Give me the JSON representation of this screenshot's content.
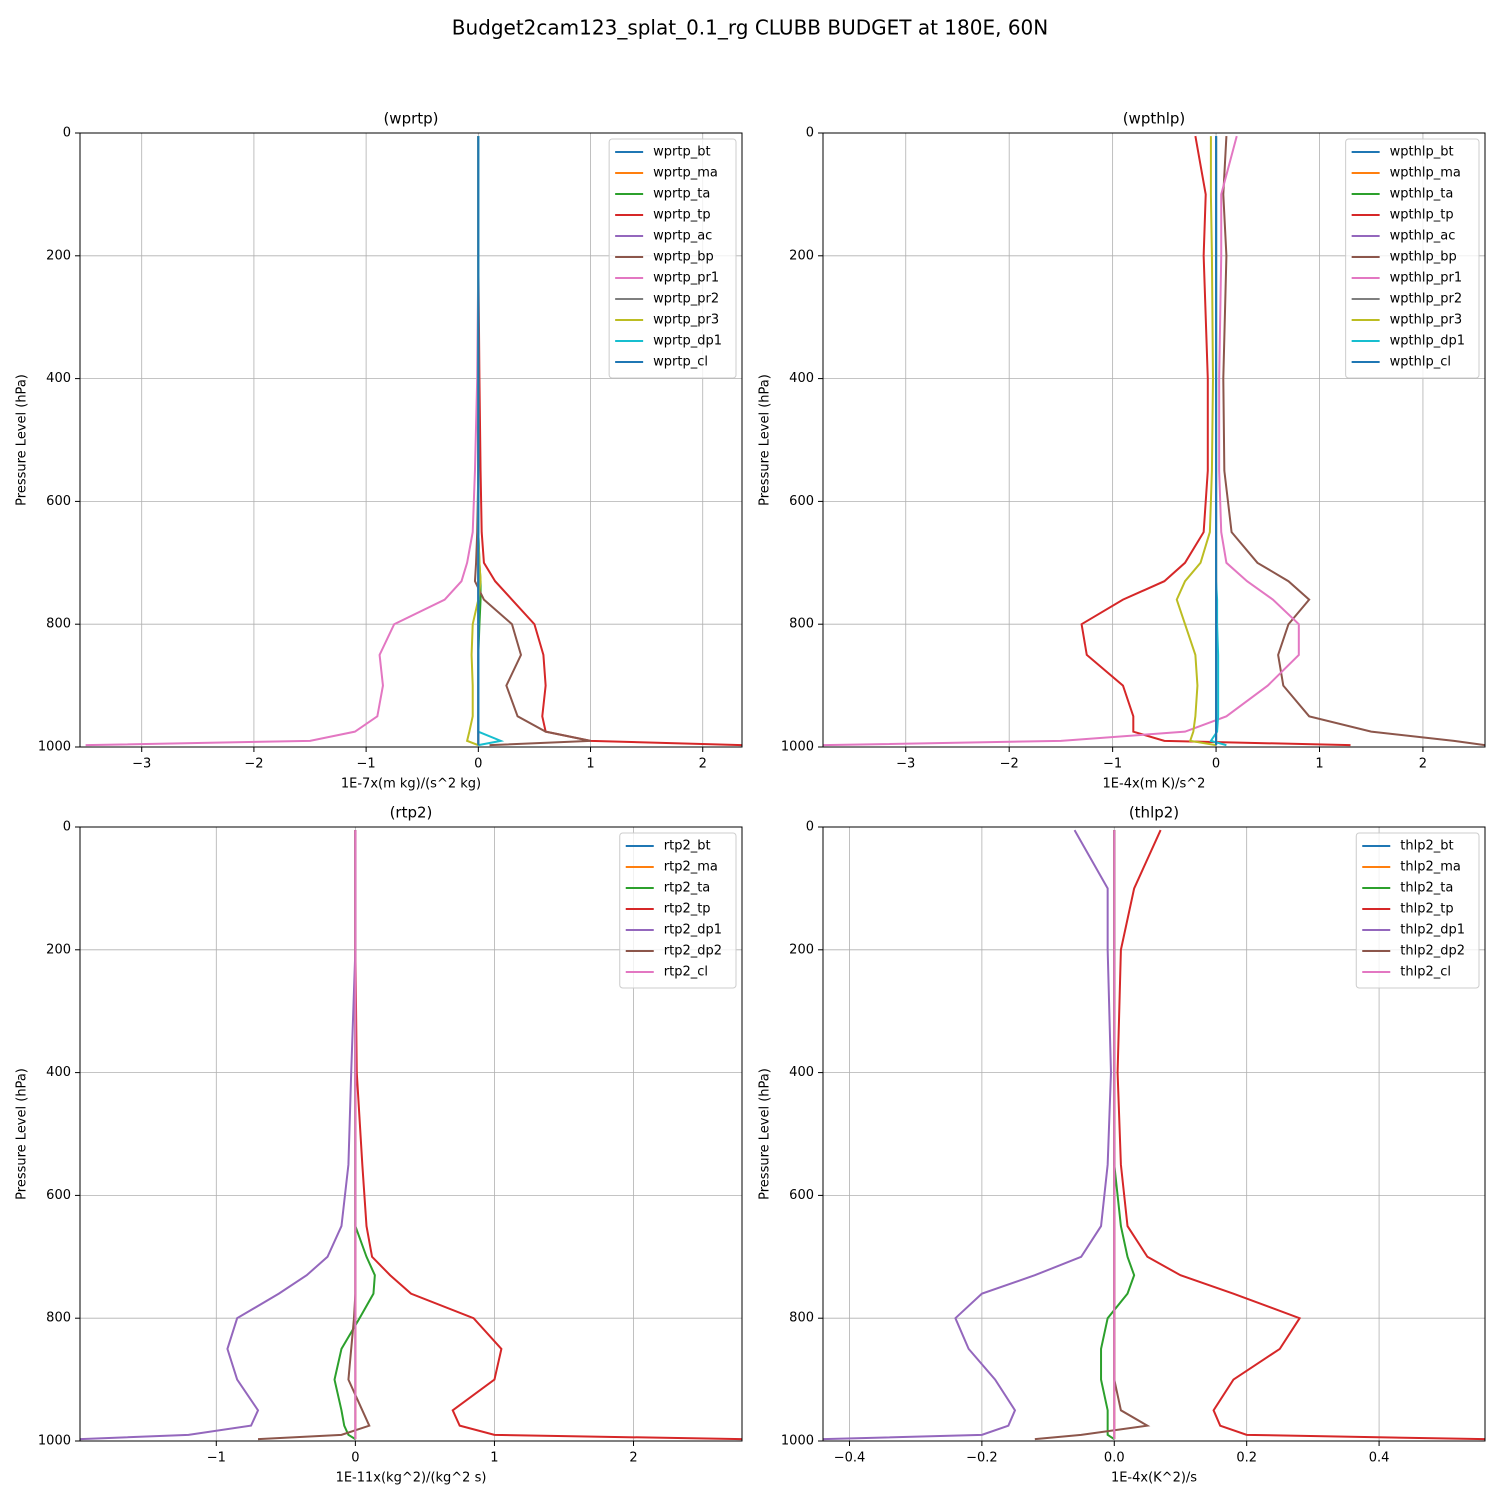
{
  "title": "Budget2cam123_splat_0.1_rg CLUBB BUDGET at 180E, 60N",
  "chart_data": [
    {
      "type": "line",
      "title": "(wprtp)",
      "xlabel": "1E-7x(m kg)/(s^2 kg)",
      "ylabel": "Pressure Level (hPa)",
      "y": [
        5,
        100,
        200,
        400,
        550,
        650,
        700,
        730,
        760,
        800,
        850,
        900,
        950,
        975,
        990,
        997
      ],
      "xlim": [
        -3.55,
        2.35
      ],
      "ylim": [
        1000,
        0
      ],
      "xticks": [
        {
          "value": -3,
          "label": "−3"
        },
        {
          "value": -2,
          "label": "−2"
        },
        {
          "value": -1,
          "label": "−1"
        },
        0,
        1,
        2
      ],
      "yticks": [
        0,
        200,
        400,
        600,
        800,
        1000
      ],
      "grid": true,
      "legend": "upper right",
      "series": [
        {
          "name": "wprtp_bt",
          "color": "#1f77b4",
          "values": [
            0,
            0,
            0,
            0,
            0,
            0,
            0,
            0,
            0,
            0,
            0,
            0,
            0,
            0,
            0,
            0
          ]
        },
        {
          "name": "wprtp_ma",
          "color": "#ff7f0e",
          "values": [
            0,
            0,
            0,
            0,
            0,
            0,
            0,
            0,
            0,
            0,
            0,
            0,
            0,
            0,
            0,
            0
          ]
        },
        {
          "name": "wprtp_ta",
          "color": "#2ca02c",
          "values": [
            0,
            0,
            0,
            0,
            0,
            0,
            0.01,
            0.02,
            0.02,
            0.01,
            0,
            0,
            0,
            0,
            0,
            0
          ]
        },
        {
          "name": "wprtp_tp",
          "color": "#d62728",
          "values": [
            0,
            0,
            0,
            0.01,
            0.02,
            0.03,
            0.05,
            0.15,
            0.3,
            0.5,
            0.58,
            0.6,
            0.57,
            0.6,
            1.0,
            2.35
          ]
        },
        {
          "name": "wprtp_ac",
          "color": "#9467bd",
          "values": [
            0,
            0,
            0,
            0,
            0,
            0,
            0,
            0,
            0,
            0,
            0,
            0,
            0,
            0,
            0,
            0
          ]
        },
        {
          "name": "wprtp_bp",
          "color": "#8c564b",
          "values": [
            0,
            0,
            0,
            0,
            0,
            -0.01,
            -0.02,
            -0.03,
            0.05,
            0.3,
            0.38,
            0.25,
            0.35,
            0.6,
            1.0,
            0.1
          ]
        },
        {
          "name": "wprtp_pr1",
          "color": "#e377c2",
          "values": [
            0,
            0,
            0,
            -0.01,
            -0.03,
            -0.05,
            -0.1,
            -0.15,
            -0.3,
            -0.75,
            -0.88,
            -0.85,
            -0.9,
            -1.1,
            -1.5,
            -3.5
          ]
        },
        {
          "name": "wprtp_pr2",
          "color": "#7f7f7f",
          "values": [
            0,
            0,
            0,
            0,
            0,
            0,
            0,
            0,
            0,
            0,
            0,
            0,
            0,
            0,
            0,
            0
          ]
        },
        {
          "name": "wprtp_pr3",
          "color": "#bcbd22",
          "values": [
            0,
            0,
            0,
            0,
            0,
            0,
            0.01,
            0.02,
            0,
            -0.05,
            -0.06,
            -0.05,
            -0.05,
            -0.08,
            -0.1,
            0
          ]
        },
        {
          "name": "wprtp_dp1",
          "color": "#17becf",
          "values": [
            0,
            0,
            0,
            0,
            0,
            0,
            0,
            0,
            0,
            0,
            0,
            0,
            0,
            0,
            0.2,
            0
          ]
        },
        {
          "name": "wprtp_cl",
          "color": "#1f77b4",
          "values": [
            0,
            0,
            0,
            0,
            0,
            0,
            0,
            0,
            0,
            0,
            0,
            0,
            0,
            0,
            0,
            0
          ]
        }
      ]
    },
    {
      "type": "line",
      "title": "(wpthlp)",
      "xlabel": "1E-4x(m K)/s^2",
      "ylabel": "Pressure Level (hPa)",
      "y": [
        5,
        100,
        200,
        400,
        550,
        650,
        700,
        730,
        760,
        800,
        850,
        900,
        950,
        975,
        990,
        997
      ],
      "xlim": [
        -3.8,
        2.6
      ],
      "ylim": [
        1000,
        0
      ],
      "xticks": [
        {
          "value": -3,
          "label": "−3"
        },
        {
          "value": -2,
          "label": "−2"
        },
        {
          "value": -1,
          "label": "−1"
        },
        0,
        1,
        2
      ],
      "yticks": [
        0,
        200,
        400,
        600,
        800,
        1000
      ],
      "grid": true,
      "legend": "upper right",
      "series": [
        {
          "name": "wpthlp_bt",
          "color": "#1f77b4",
          "values": [
            0,
            0,
            0,
            0,
            0,
            0,
            0,
            0,
            0,
            0,
            0,
            0,
            0,
            0,
            0,
            0
          ]
        },
        {
          "name": "wpthlp_ma",
          "color": "#ff7f0e",
          "values": [
            0,
            0,
            0,
            0,
            0,
            0,
            0,
            0,
            0,
            0,
            0,
            0,
            0,
            0,
            0,
            0
          ]
        },
        {
          "name": "wpthlp_ta",
          "color": "#2ca02c",
          "values": [
            0,
            0,
            0,
            0,
            0,
            0,
            0,
            0,
            0,
            0,
            0,
            0,
            0,
            0,
            0,
            0
          ]
        },
        {
          "name": "wpthlp_tp",
          "color": "#d62728",
          "values": [
            -0.2,
            -0.1,
            -0.12,
            -0.08,
            -0.08,
            -0.12,
            -0.3,
            -0.5,
            -0.9,
            -1.3,
            -1.25,
            -0.9,
            -0.8,
            -0.8,
            -0.5,
            1.3
          ]
        },
        {
          "name": "wpthlp_ac",
          "color": "#9467bd",
          "values": [
            0,
            0,
            0,
            0,
            0,
            0,
            0,
            0,
            0,
            0,
            0,
            0,
            0,
            0,
            0,
            0
          ]
        },
        {
          "name": "wpthlp_bp",
          "color": "#8c564b",
          "values": [
            0.1,
            0.07,
            0.1,
            0.07,
            0.08,
            0.15,
            0.4,
            0.7,
            0.9,
            0.7,
            0.6,
            0.65,
            0.9,
            1.5,
            2.3,
            2.6
          ]
        },
        {
          "name": "wpthlp_pr1",
          "color": "#e377c2",
          "values": [
            0.2,
            0.05,
            0.05,
            0.03,
            0.03,
            0.05,
            0.1,
            0.3,
            0.55,
            0.8,
            0.8,
            0.5,
            0.1,
            -0.3,
            -1.5,
            -3.8
          ]
        },
        {
          "name": "wpthlp_pr2",
          "color": "#7f7f7f",
          "values": [
            0,
            0,
            0,
            0,
            0,
            0,
            0,
            0,
            0,
            0,
            0,
            0,
            0,
            0,
            0,
            0
          ]
        },
        {
          "name": "wpthlp_pr3",
          "color": "#bcbd22",
          "values": [
            -0.05,
            -0.05,
            -0.04,
            -0.03,
            -0.04,
            -0.06,
            -0.15,
            -0.3,
            -0.38,
            -0.3,
            -0.2,
            -0.18,
            -0.2,
            -0.22,
            -0.25,
            0
          ]
        },
        {
          "name": "wpthlp_dp1",
          "color": "#17becf",
          "values": [
            0,
            0,
            0,
            0,
            0,
            0,
            0,
            0,
            0.01,
            0.01,
            0.02,
            0.02,
            0.02,
            0.01,
            -0.05,
            0.1
          ]
        },
        {
          "name": "wpthlp_cl",
          "color": "#1f77b4",
          "values": [
            0,
            0,
            0,
            0,
            0,
            0,
            0,
            0,
            0,
            0,
            0,
            0,
            0,
            0,
            0,
            0
          ]
        }
      ]
    },
    {
      "type": "line",
      "title": "(rtp2)",
      "xlabel": "1E-11x(kg^2)/(kg^2 s)",
      "ylabel": "Pressure Level (hPa)",
      "y": [
        5,
        100,
        200,
        400,
        550,
        650,
        700,
        730,
        760,
        800,
        850,
        900,
        950,
        975,
        990,
        997
      ],
      "xlim": [
        -1.98,
        2.78
      ],
      "ylim": [
        1000,
        0
      ],
      "xticks": [
        {
          "value": -1,
          "label": "−1"
        },
        0,
        1,
        2
      ],
      "yticks": [
        0,
        200,
        400,
        600,
        800,
        1000
      ],
      "grid": true,
      "legend": "upper right",
      "series": [
        {
          "name": "rtp2_bt",
          "color": "#1f77b4",
          "values": [
            0,
            0,
            0,
            0,
            0,
            0,
            0,
            0,
            0,
            0,
            0,
            0,
            0,
            0,
            0,
            0
          ]
        },
        {
          "name": "rtp2_ma",
          "color": "#ff7f0e",
          "values": [
            0,
            0,
            0,
            0,
            0,
            0,
            0,
            0,
            0,
            0,
            0,
            0,
            0,
            0,
            0,
            0
          ]
        },
        {
          "name": "rtp2_ta",
          "color": "#2ca02c",
          "values": [
            0,
            0,
            0,
            0,
            0,
            0,
            0.08,
            0.14,
            0.13,
            0.03,
            -0.1,
            -0.15,
            -0.1,
            -0.08,
            -0.05,
            0
          ]
        },
        {
          "name": "rtp2_tp",
          "color": "#d62728",
          "values": [
            0,
            0,
            0,
            0.01,
            0.05,
            0.08,
            0.12,
            0.25,
            0.4,
            0.85,
            1.05,
            1.0,
            0.7,
            0.75,
            1.0,
            2.78
          ]
        },
        {
          "name": "rtp2_dp1",
          "color": "#9467bd",
          "values": [
            0,
            0,
            0,
            -0.03,
            -0.05,
            -0.1,
            -0.2,
            -0.35,
            -0.55,
            -0.85,
            -0.92,
            -0.85,
            -0.7,
            -0.75,
            -1.2,
            -1.98
          ]
        },
        {
          "name": "rtp2_dp2",
          "color": "#8c564b",
          "values": [
            0,
            0,
            0,
            0,
            0,
            0,
            0,
            0,
            0,
            -0.01,
            -0.03,
            -0.05,
            0.05,
            0.1,
            -0.1,
            -0.7
          ]
        },
        {
          "name": "rtp2_cl",
          "color": "#e377c2",
          "values": [
            0,
            0,
            0,
            0,
            0,
            0,
            0,
            0,
            0,
            0,
            0,
            0,
            0,
            0,
            0,
            0
          ]
        }
      ]
    },
    {
      "type": "line",
      "title": "(thlp2)",
      "xlabel": "1E-4x(K^2)/s",
      "ylabel": "Pressure Level (hPa)",
      "y": [
        5,
        100,
        200,
        400,
        550,
        650,
        700,
        730,
        760,
        800,
        850,
        900,
        950,
        975,
        990,
        997
      ],
      "xlim": [
        -0.44,
        0.56
      ],
      "ylim": [
        1000,
        0
      ],
      "xticks": [
        {
          "value": -0.4,
          "label": "−0.4"
        },
        {
          "value": -0.2,
          "label": "−0.2"
        },
        {
          "value": 0,
          "label": "0.0"
        },
        0.2,
        0.4
      ],
      "yticks": [
        0,
        200,
        400,
        600,
        800,
        1000
      ],
      "grid": true,
      "legend": "upper right",
      "series": [
        {
          "name": "thlp2_bt",
          "color": "#1f77b4",
          "values": [
            0,
            0,
            0,
            0,
            0,
            0,
            0,
            0,
            0,
            0,
            0,
            0,
            0,
            0,
            0,
            0
          ]
        },
        {
          "name": "thlp2_ma",
          "color": "#ff7f0e",
          "values": [
            0,
            0,
            0,
            0,
            0,
            0,
            0,
            0,
            0,
            0,
            0,
            0,
            0,
            0,
            0,
            0
          ]
        },
        {
          "name": "thlp2_ta",
          "color": "#2ca02c",
          "values": [
            0,
            0,
            0,
            0,
            0,
            0.01,
            0.02,
            0.03,
            0.02,
            -0.01,
            -0.02,
            -0.02,
            -0.01,
            -0.01,
            -0.01,
            0
          ]
        },
        {
          "name": "thlp2_tp",
          "color": "#d62728",
          "values": [
            0.07,
            0.03,
            0.01,
            0.005,
            0.01,
            0.02,
            0.05,
            0.1,
            0.18,
            0.28,
            0.25,
            0.18,
            0.15,
            0.16,
            0.2,
            0.56
          ]
        },
        {
          "name": "thlp2_dp1",
          "color": "#9467bd",
          "values": [
            -0.06,
            -0.01,
            -0.01,
            -0.005,
            -0.01,
            -0.02,
            -0.05,
            -0.12,
            -0.2,
            -0.24,
            -0.22,
            -0.18,
            -0.15,
            -0.16,
            -0.2,
            -0.44
          ]
        },
        {
          "name": "thlp2_dp2",
          "color": "#8c564b",
          "values": [
            0,
            0,
            0,
            0,
            0,
            0,
            0,
            0,
            0,
            0,
            0,
            0,
            0.01,
            0.05,
            -0.05,
            -0.12
          ]
        },
        {
          "name": "thlp2_cl",
          "color": "#e377c2",
          "values": [
            0,
            0,
            0,
            0,
            0,
            0,
            0,
            0,
            0,
            0,
            0,
            0,
            0,
            0,
            0,
            0
          ]
        }
      ]
    }
  ]
}
